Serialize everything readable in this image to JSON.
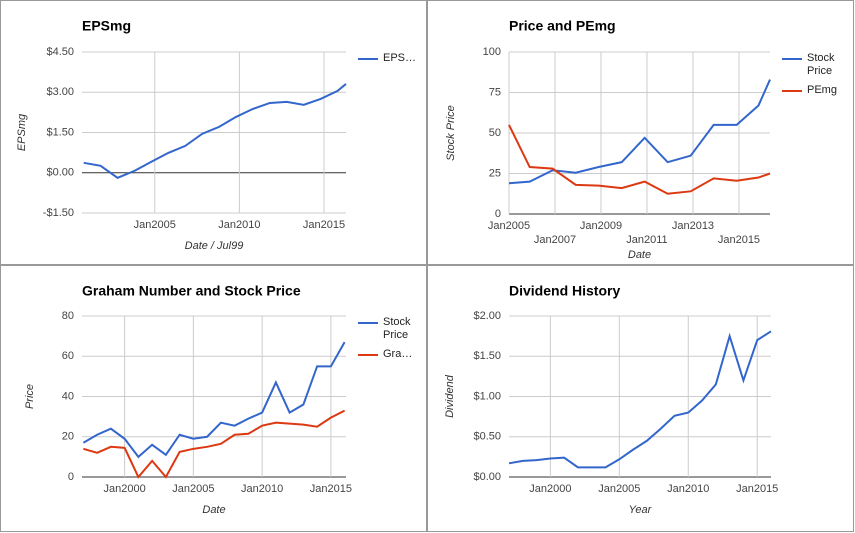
{
  "chart_data": [
    {
      "type": "line",
      "title": "EPSmg",
      "x_label": "Date / Jul99",
      "y_label": "EPSmg",
      "x": [
        2000.8,
        2001.8,
        2002.8,
        2003.8,
        2004.8,
        2005.8,
        2006.8,
        2007.8,
        2008.8,
        2009.8,
        2010.8,
        2011.8,
        2012.8,
        2013.8,
        2014.8,
        2015.8,
        2016.3
      ],
      "series": [
        {
          "name": "EPS…",
          "color": "#3366cc",
          "values": [
            0.37,
            0.26,
            -0.19,
            0.07,
            0.41,
            0.74,
            1.0,
            1.45,
            1.71,
            2.08,
            2.38,
            2.6,
            2.64,
            2.53,
            2.75,
            3.05,
            3.31
          ]
        }
      ],
      "xlim": [
        2000.7,
        2016.3
      ],
      "ylim": [
        -1.5,
        4.5
      ],
      "xticks": [
        {
          "value": 2005,
          "label": "Jan2005"
        },
        {
          "value": 2010,
          "label": "Jan2010"
        },
        {
          "value": 2015,
          "label": "Jan2015"
        }
      ],
      "yticks": [
        {
          "value": -1.5,
          "label": "-$1.50"
        },
        {
          "value": 0,
          "label": "$0.00"
        },
        {
          "value": 1.5,
          "label": "$1.50"
        },
        {
          "value": 3,
          "label": "$3.00"
        },
        {
          "value": 4.5,
          "label": "$4.50"
        }
      ],
      "grid": true,
      "legend": "right"
    },
    {
      "type": "line",
      "title": "Price and PEmg",
      "x_label": "Date",
      "y_label": "Stock Price",
      "x": [
        2005,
        2005.9,
        2006.9,
        2007.9,
        2008.9,
        2009.9,
        2010.9,
        2011.9,
        2012.9,
        2013.9,
        2014.9,
        2015.85,
        2016.35
      ],
      "series": [
        {
          "name": "Stock Price",
          "color": "#3366cc",
          "values": [
            19,
            20,
            27,
            25.5,
            29,
            32,
            47,
            32,
            36,
            55,
            55,
            67,
            83
          ]
        },
        {
          "name": "PEmg",
          "color": "#dc3912",
          "values": [
            55,
            29,
            28,
            18,
            17.5,
            16,
            20,
            12.5,
            14,
            22,
            20.5,
            22.5,
            25
          ]
        }
      ],
      "xlim": [
        2005,
        2016.35
      ],
      "ylim": [
        0,
        100
      ],
      "xticks": [
        {
          "value": 2005,
          "label": "Jan2005"
        },
        {
          "value": 2007,
          "label": "Jan2007"
        },
        {
          "value": 2009,
          "label": "Jan2009"
        },
        {
          "value": 2011,
          "label": "Jan2011"
        },
        {
          "value": 2013,
          "label": "Jan2013"
        },
        {
          "value": 2015,
          "label": "Jan2015"
        }
      ],
      "yticks": [
        0,
        25,
        50,
        75,
        100
      ],
      "grid": true,
      "legend": "right"
    },
    {
      "type": "line",
      "title": "Graham Number and Stock Price",
      "x_label": "Date",
      "y_label": "Price",
      "x": [
        1997,
        1998,
        1999,
        2000,
        2001,
        2002,
        2003,
        2004,
        2005,
        2006,
        2007,
        2008,
        2009,
        2010,
        2011,
        2012,
        2013,
        2014,
        2015,
        2016
      ],
      "series": [
        {
          "name": "Stock Price",
          "color": "#3366cc",
          "values": [
            17,
            21,
            24,
            19,
            10,
            16,
            11,
            21,
            19,
            20,
            27,
            25.5,
            29,
            32,
            47,
            32,
            36,
            55,
            55,
            67
          ]
        },
        {
          "name": "Gra…",
          "color": "#dc3912",
          "values": [
            14,
            12,
            15,
            14.5,
            0,
            8,
            0,
            12.5,
            14,
            15,
            16.5,
            21,
            21.5,
            25.5,
            27,
            26.5,
            26,
            25,
            29.5,
            33
          ]
        }
      ],
      "xlim": [
        1996.9,
        2016.1
      ],
      "ylim": [
        0,
        80
      ],
      "xticks": [
        {
          "value": 2000,
          "label": "Jan2000"
        },
        {
          "value": 2005,
          "label": "Jan2005"
        },
        {
          "value": 2010,
          "label": "Jan2010"
        },
        {
          "value": 2015,
          "label": "Jan2015"
        }
      ],
      "yticks": [
        0,
        20,
        40,
        60,
        80
      ],
      "grid": true,
      "legend": "right"
    },
    {
      "type": "line",
      "title": "Dividend History",
      "x_label": "Year",
      "y_label": "Dividend",
      "x": [
        1997,
        1998,
        1999,
        2000,
        2001,
        2002,
        2003,
        2004,
        2005,
        2006,
        2007,
        2008,
        2009,
        2010,
        2011,
        2012,
        2013,
        2014,
        2015,
        2016
      ],
      "series": [
        {
          "name": "Dividend",
          "color": "#3366cc",
          "values": [
            0.17,
            0.2,
            0.21,
            0.23,
            0.24,
            0.12,
            0.12,
            0.12,
            0.22,
            0.34,
            0.45,
            0.6,
            0.76,
            0.8,
            0.95,
            1.15,
            1.75,
            1.2,
            1.7,
            1.81
          ]
        }
      ],
      "xlim": [
        1997,
        2016
      ],
      "ylim": [
        0,
        2
      ],
      "xticks": [
        {
          "value": 2000,
          "label": "Jan2000"
        },
        {
          "value": 2005,
          "label": "Jan2005"
        },
        {
          "value": 2010,
          "label": "Jan2010"
        },
        {
          "value": 2015,
          "label": "Jan2015"
        }
      ],
      "yticks": [
        {
          "value": 0,
          "label": "$0.00"
        },
        {
          "value": 0.5,
          "label": "$0.50"
        },
        {
          "value": 1,
          "label": "$1.00"
        },
        {
          "value": 1.5,
          "label": "$1.50"
        },
        {
          "value": 2,
          "label": "$2.00"
        }
      ],
      "grid": true,
      "legend": "none"
    }
  ]
}
